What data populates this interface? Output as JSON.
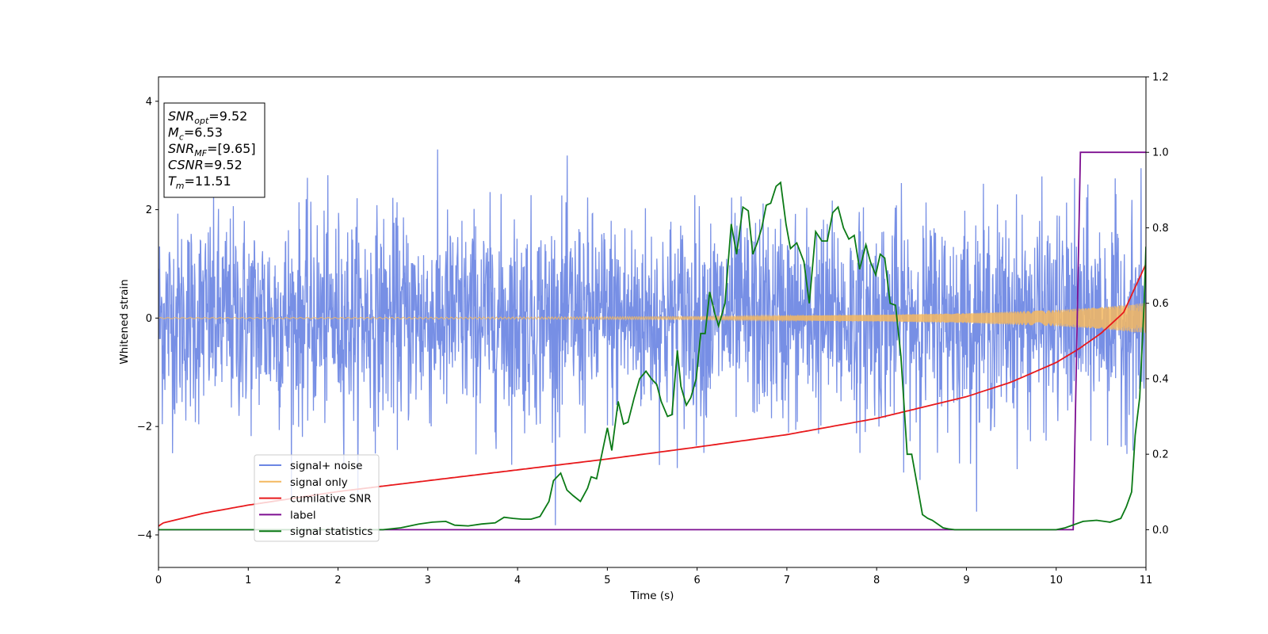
{
  "chart_data": {
    "type": "line",
    "xlabel": "Time (s)",
    "ylabel": "Whitened strain",
    "xlim": [
      0,
      11
    ],
    "ylim": [
      -4.6,
      4.45
    ],
    "ylim_right": [
      -0.1,
      1.2
    ],
    "xticks": [
      "0",
      "1",
      "2",
      "3",
      "4",
      "5",
      "6",
      "7",
      "8",
      "9",
      "10",
      "11"
    ],
    "yticks": [
      "−4",
      "−2",
      "0",
      "2",
      "4"
    ],
    "yticks_right": [
      "0.0",
      "0.2",
      "0.4",
      "0.6",
      "0.8",
      "1.0",
      "1.2"
    ],
    "legend_position": "lower-left",
    "annotation": [
      {
        "main": "SNR",
        "sub": "opt",
        "value": "=9.52"
      },
      {
        "main": "M",
        "sub": "c",
        "value": "=6.53"
      },
      {
        "main": "SNR",
        "sub": "MF",
        "value": "=[9.65]"
      },
      {
        "main": "CSNR",
        "sub": "",
        "value": "=9.52"
      },
      {
        "main": "T",
        "sub": "m",
        "value": "=11.51"
      }
    ],
    "series": [
      {
        "name": "signal+ noise",
        "color": "#6b86e3",
        "axis": "left",
        "description_values": {
          "mean": 0.0,
          "std": 0.95,
          "amplitude_range": [
            -4.15,
            4.05
          ],
          "time_range": [
            0,
            11
          ]
        }
      },
      {
        "name": "signal only",
        "color": "#f4b860",
        "axis": "left",
        "envelope": {
          "x": [
            0,
            2,
            4,
            6,
            8,
            9,
            10,
            10.5,
            11
          ],
          "amp": [
            0.01,
            0.012,
            0.018,
            0.03,
            0.06,
            0.09,
            0.15,
            0.2,
            0.28
          ]
        }
      },
      {
        "name": "cumilative SNR",
        "color": "#e8191c",
        "axis": "left",
        "x": [
          0,
          0.05,
          0.5,
          1,
          2,
          3,
          4,
          5,
          6,
          7,
          8,
          9,
          9.5,
          10,
          10.25,
          10.5,
          10.75,
          11
        ],
        "y": [
          -3.84,
          -3.78,
          -3.6,
          -3.45,
          -3.2,
          -3.0,
          -2.8,
          -2.6,
          -2.38,
          -2.15,
          -1.85,
          -1.45,
          -1.18,
          -0.82,
          -0.57,
          -0.28,
          0.1,
          1.0
        ]
      },
      {
        "name": "label",
        "color": "#7d0f91",
        "axis": "right",
        "x": [
          0,
          10.19,
          10.27,
          11
        ],
        "y": [
          0,
          0,
          1,
          1
        ]
      },
      {
        "name": "signal statistics",
        "color": "#0b7a16",
        "axis": "right",
        "x": [
          0,
          2.5,
          2.7,
          2.9,
          3.05,
          3.2,
          3.3,
          3.45,
          3.6,
          3.75,
          3.85,
          3.95,
          4.05,
          4.15,
          4.25,
          4.35,
          4.4,
          4.48,
          4.55,
          4.62,
          4.7,
          4.78,
          4.82,
          4.88,
          4.93,
          5.0,
          5.05,
          5.12,
          5.18,
          5.23,
          5.3,
          5.36,
          5.43,
          5.49,
          5.55,
          5.6,
          5.67,
          5.72,
          5.78,
          5.82,
          5.88,
          5.93,
          5.99,
          6.04,
          6.09,
          6.14,
          6.2,
          6.24,
          6.31,
          6.38,
          6.44,
          6.51,
          6.57,
          6.62,
          6.67,
          6.72,
          6.77,
          6.82,
          6.88,
          6.93,
          6.99,
          7.04,
          7.11,
          7.19,
          7.25,
          7.32,
          7.39,
          7.45,
          7.51,
          7.57,
          7.63,
          7.69,
          7.75,
          7.81,
          7.88,
          7.93,
          7.99,
          8.04,
          8.09,
          8.15,
          8.21,
          8.27,
          8.34,
          8.39,
          8.45,
          8.51,
          8.57,
          8.62,
          8.68,
          8.74,
          8.8,
          8.87,
          8.93,
          9.0,
          9.2,
          9.6,
          10.0,
          10.1,
          10.3,
          10.45,
          10.6,
          10.72,
          10.78,
          10.84,
          10.88,
          10.93,
          10.98,
          11.0
        ],
        "y": [
          0.0,
          0.0,
          0.005,
          0.015,
          0.02,
          0.022,
          0.012,
          0.01,
          0.015,
          0.018,
          0.033,
          0.03,
          0.028,
          0.028,
          0.035,
          0.075,
          0.13,
          0.15,
          0.105,
          0.09,
          0.075,
          0.11,
          0.14,
          0.135,
          0.19,
          0.27,
          0.21,
          0.34,
          0.28,
          0.285,
          0.35,
          0.4,
          0.42,
          0.4,
          0.385,
          0.34,
          0.3,
          0.305,
          0.475,
          0.38,
          0.33,
          0.35,
          0.4,
          0.52,
          0.52,
          0.63,
          0.57,
          0.54,
          0.6,
          0.81,
          0.73,
          0.855,
          0.845,
          0.73,
          0.76,
          0.8,
          0.86,
          0.865,
          0.91,
          0.92,
          0.81,
          0.745,
          0.76,
          0.71,
          0.6,
          0.79,
          0.765,
          0.765,
          0.84,
          0.855,
          0.8,
          0.77,
          0.78,
          0.69,
          0.755,
          0.71,
          0.675,
          0.73,
          0.72,
          0.6,
          0.595,
          0.46,
          0.2,
          0.2,
          0.12,
          0.04,
          0.03,
          0.025,
          0.015,
          0.005,
          0.002,
          0.0,
          0.0,
          0.0,
          0.0,
          0.0,
          0.0,
          0.005,
          0.022,
          0.025,
          0.02,
          0.03,
          0.06,
          0.1,
          0.25,
          0.35,
          0.6,
          0.75
        ]
      }
    ]
  }
}
